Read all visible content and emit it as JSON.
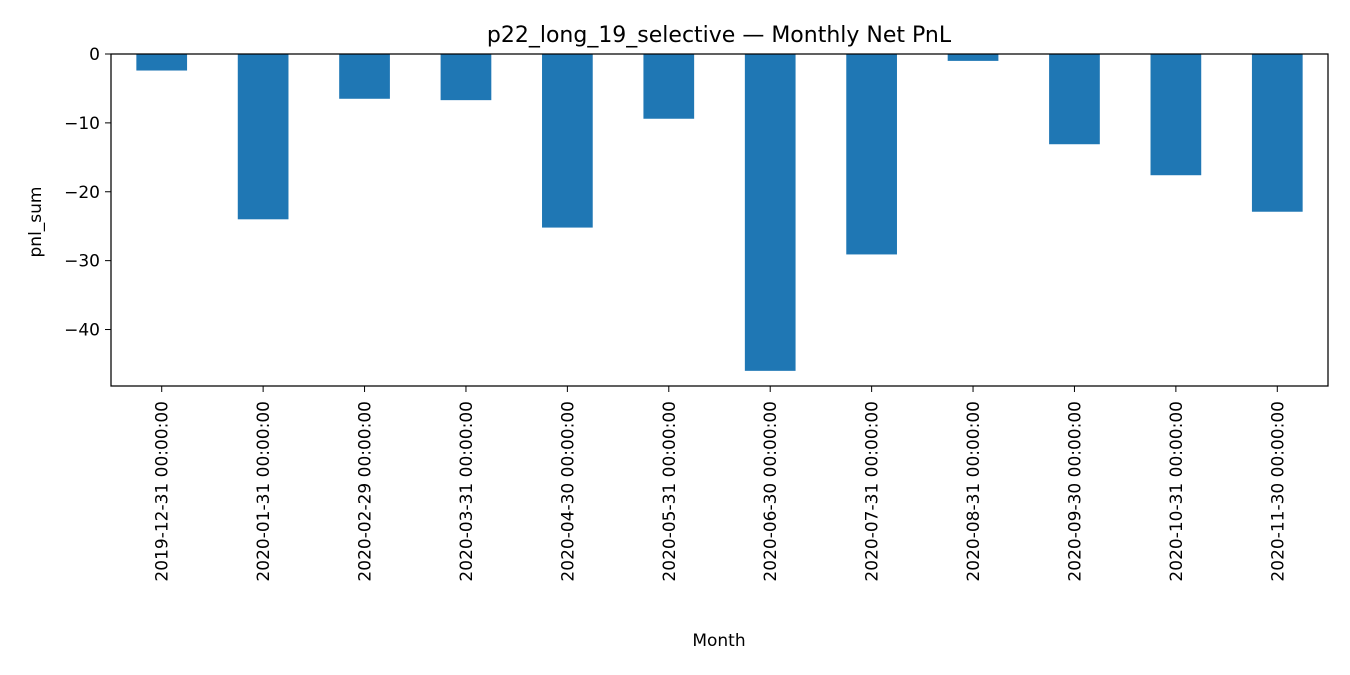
{
  "chart_data": {
    "type": "bar",
    "title": "p22_long_19_selective — Monthly Net PnL",
    "xlabel": "Month",
    "ylabel": "pnl_sum",
    "categories": [
      "2019-12-31 00:00:00",
      "2020-01-31 00:00:00",
      "2020-02-29 00:00:00",
      "2020-03-31 00:00:00",
      "2020-04-30 00:00:00",
      "2020-05-31 00:00:00",
      "2020-06-30 00:00:00",
      "2020-07-31 00:00:00",
      "2020-08-31 00:00:00",
      "2020-09-30 00:00:00",
      "2020-10-31 00:00:00",
      "2020-11-30 00:00:00"
    ],
    "values": [
      -2.4,
      -24.0,
      -6.5,
      -6.7,
      -25.2,
      -9.4,
      -46.0,
      -29.1,
      -1.0,
      -13.1,
      -17.6,
      -22.9
    ],
    "ylim": [
      -48.2,
      0
    ],
    "yticks": [
      0,
      -10,
      -20,
      -30,
      -40
    ],
    "ytick_labels": [
      "0",
      "−10",
      "−20",
      "−30",
      "−40"
    ],
    "bar_color": "#1f77b4",
    "grid": false,
    "legend": "none"
  }
}
